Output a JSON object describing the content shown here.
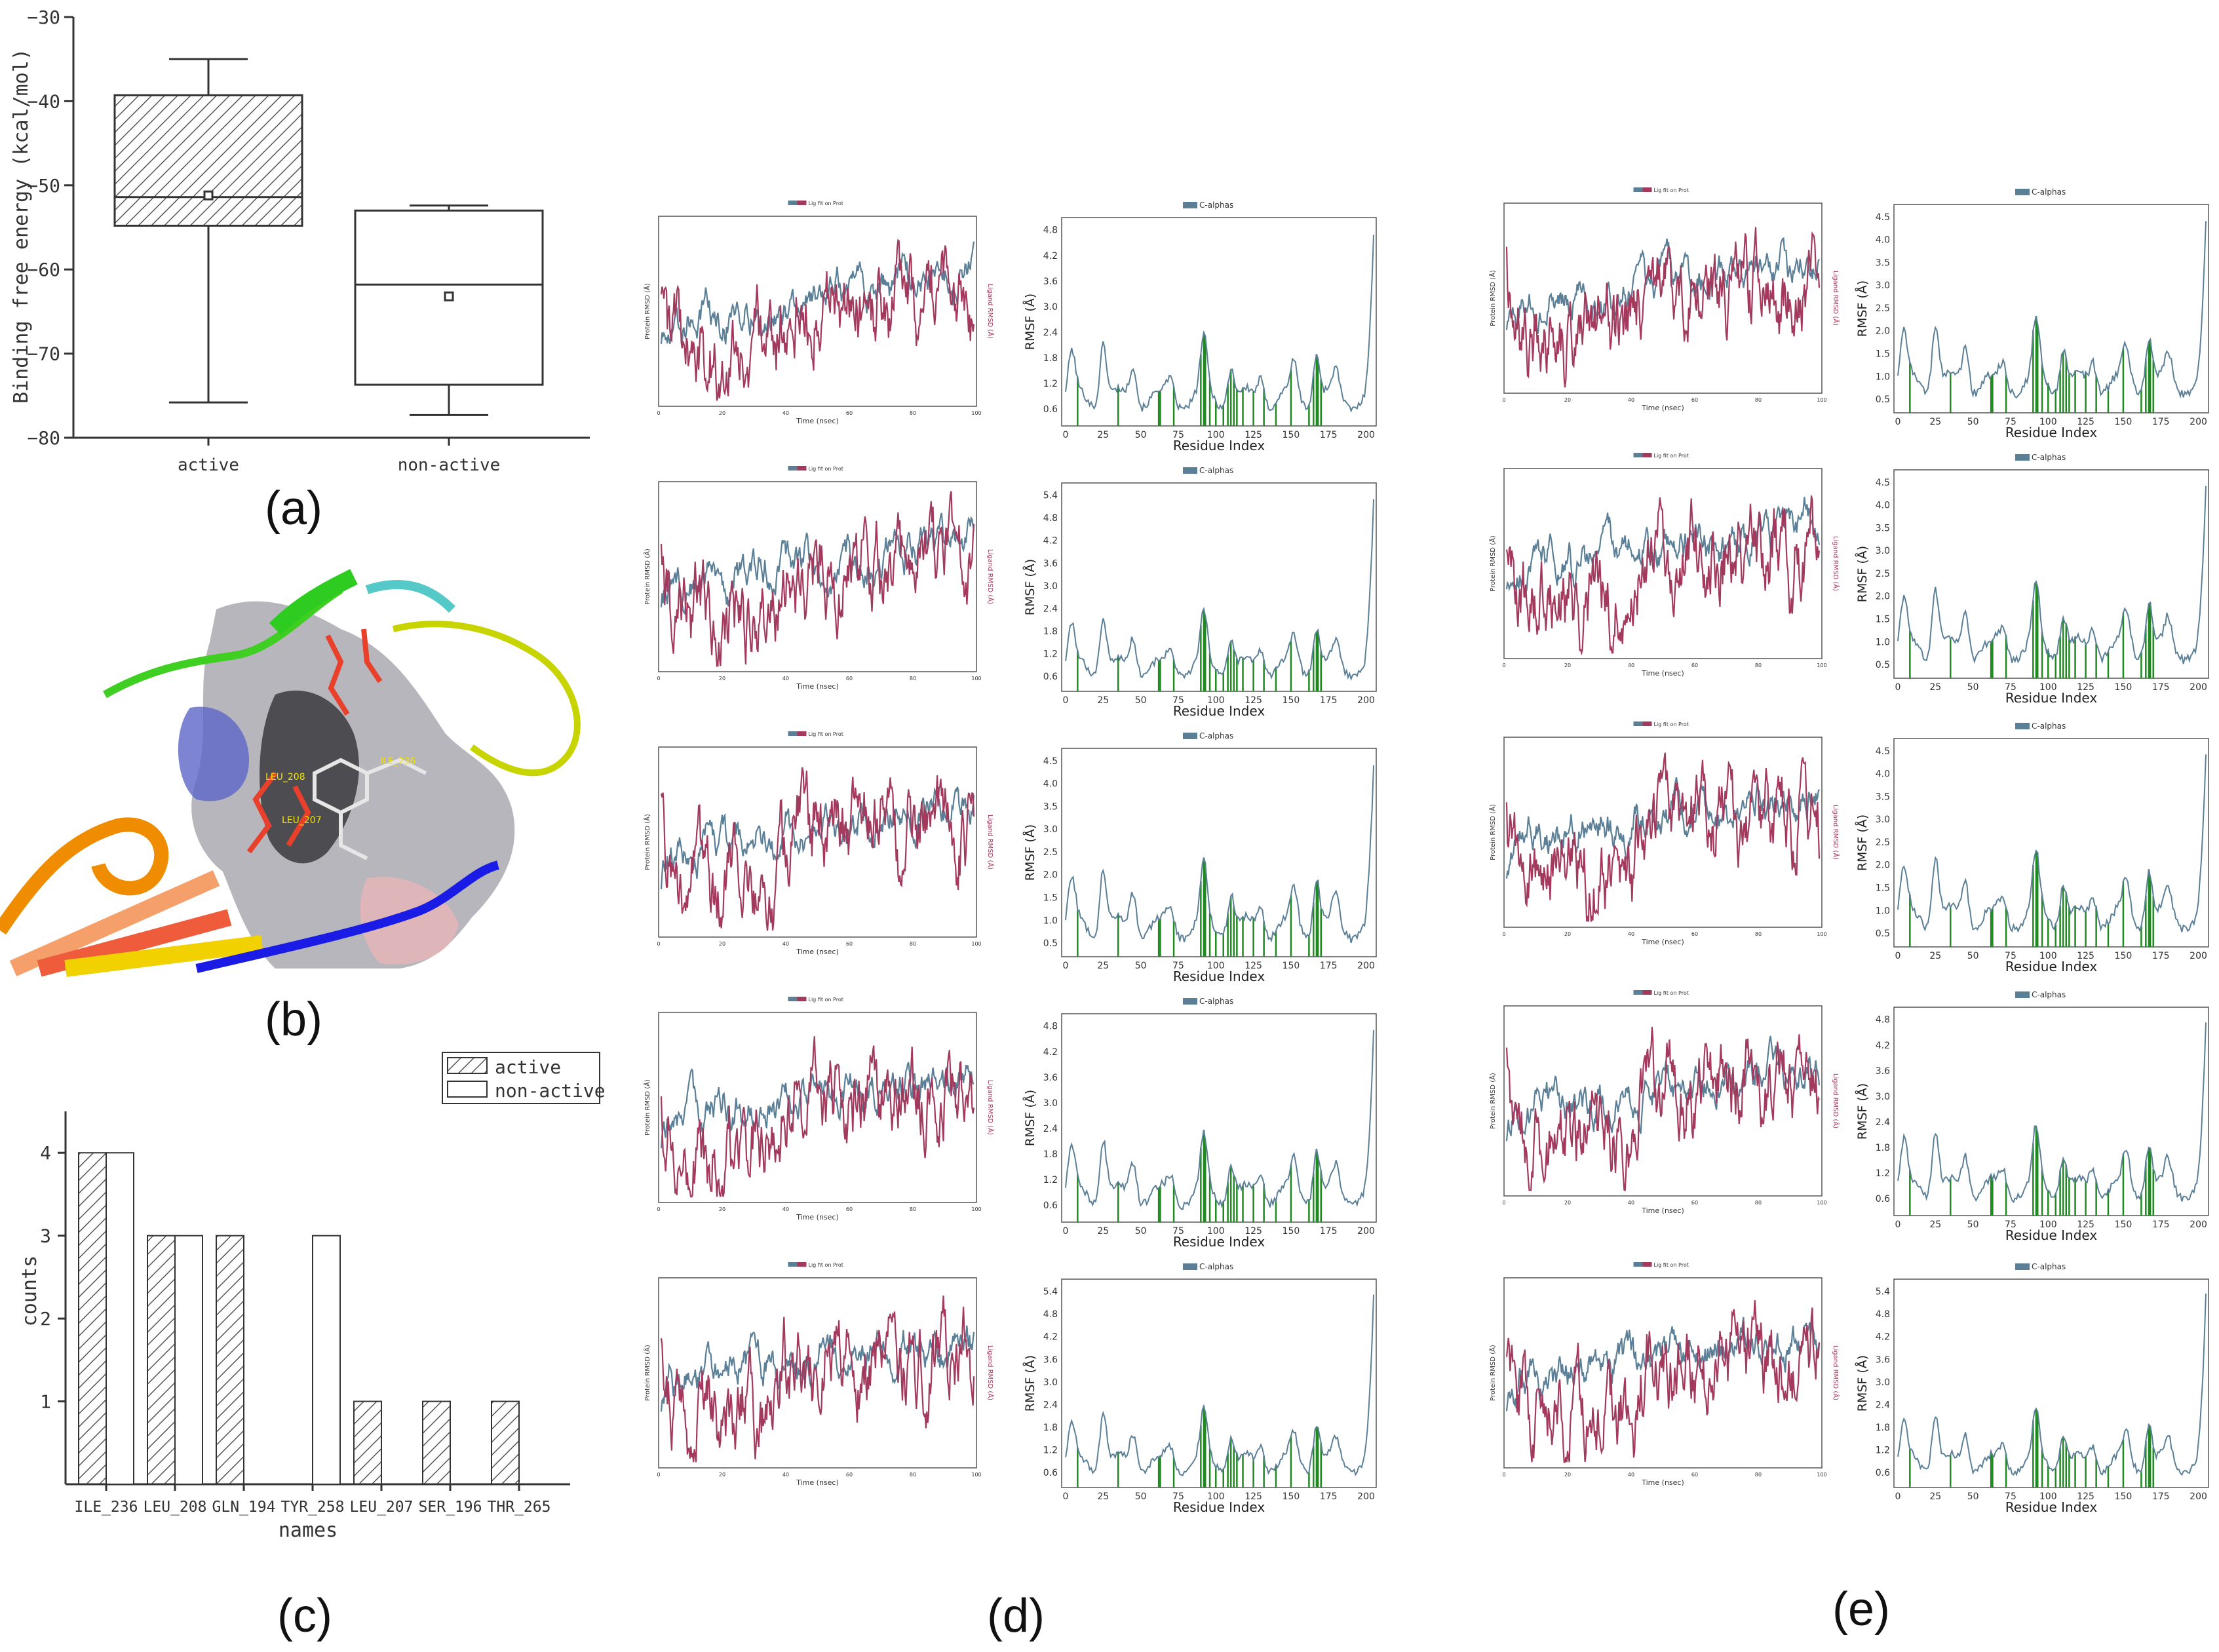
{
  "panel_labels": {
    "a": "(a)",
    "b": "(b)",
    "c": "(c)",
    "d": "(d)",
    "e": "(e)"
  },
  "chart_data": [
    {
      "id": "a",
      "type": "box",
      "title": "",
      "xlabel": "",
      "ylabel": "Binding free energy (kcal/mol)",
      "ylim": [
        -80,
        -30
      ],
      "yticks": [
        -30,
        -40,
        -50,
        -60,
        -70,
        -80
      ],
      "categories": [
        "active",
        "non-active"
      ],
      "boxes": [
        {
          "name": "active",
          "whisker_low": -75.8,
          "q1": -54.8,
          "median": -51.4,
          "mean": -51.2,
          "q3": -39.3,
          "whisker_high": -35.0,
          "hatched": true
        },
        {
          "name": "non-active",
          "whisker_low": -77.3,
          "q1": -73.7,
          "median": -61.8,
          "mean": -63.2,
          "q3": -53.0,
          "whisker_high": -52.4,
          "hatched": false
        }
      ]
    },
    {
      "id": "c",
      "type": "bar",
      "xlabel": "names",
      "ylabel": "counts",
      "ylim": [
        0,
        4.5
      ],
      "yticks": [
        1,
        2,
        3,
        4
      ],
      "categories": [
        "ILE_236",
        "LEU_208",
        "GLN_194",
        "TYR_258",
        "LEU_207",
        "SER_196",
        "THR_265"
      ],
      "legend": {
        "placement": "top-right",
        "entries": [
          "active",
          "non-active"
        ]
      },
      "series": [
        {
          "name": "active",
          "values": [
            4,
            3,
            3,
            0,
            1,
            1,
            1
          ]
        },
        {
          "name": "non-active",
          "values": [
            4,
            3,
            0,
            3,
            0,
            0,
            0
          ]
        }
      ]
    },
    {
      "id": "d",
      "type": "line",
      "description_series": "Five rows of MD trajectory plots: protein/ligand RMSD vs time and C-alpha RMSF vs residue index",
      "rmsd": {
        "legend": "Lig fit on Prot",
        "xlabel": "Time (nsec)",
        "ylabel_left": "Protein RMSD (Å)",
        "ylabel_right": "Ligand RMSD (Å)",
        "xticks": [
          0,
          20,
          40,
          60,
          80,
          100
        ]
      },
      "rmsf": {
        "legend": "C-alphas",
        "xlabel": "Residue Index",
        "ylabel": "RMSF (Å)",
        "xticks": [
          0,
          25,
          50,
          75,
          100,
          125,
          150,
          175,
          200
        ],
        "yticks_rows": [
          [
            "0.6",
            "1.2",
            "1.8",
            "2.4",
            "3.0",
            "3.6",
            "4.2",
            "4.8"
          ],
          [
            "0.6",
            "1.2",
            "1.8",
            "2.4",
            "3.0",
            "3.6",
            "4.2",
            "4.8",
            "5.4"
          ],
          [
            "0.5",
            "1.0",
            "1.5",
            "2.0",
            "2.5",
            "3.0",
            "3.5",
            "4.0",
            "4.5"
          ],
          [
            "0.6",
            "1.2",
            "1.8",
            "2.4",
            "3.0",
            "3.6",
            "4.2",
            "4.8"
          ],
          [
            "0.6",
            "1.2",
            "1.8",
            "2.4",
            "3.0",
            "3.6",
            "4.2",
            "4.8",
            "5.4"
          ]
        ]
      }
    },
    {
      "id": "e",
      "type": "line",
      "description_series": "Five rows of MD trajectory plots: protein/ligand RMSD vs time and C-alpha RMSF vs residue index",
      "rmsd": {
        "legend": "Lig fit on Prot",
        "xlabel": "Time (nsec)",
        "ylabel_left": "Protein RMSD (Å)",
        "ylabel_right": "Ligand RMSD (Å)",
        "xticks": [
          0,
          20,
          40,
          60,
          80,
          100
        ]
      },
      "rmsf": {
        "legend": "C-alphas",
        "xlabel": "Residue Index",
        "ylabel": "RMSF (Å)",
        "xticks": [
          0,
          25,
          50,
          75,
          100,
          125,
          150,
          175,
          200
        ],
        "yticks_rows": [
          [
            "0.5",
            "1.0",
            "1.5",
            "2.0",
            "2.5",
            "3.0",
            "3.5",
            "4.0",
            "4.5"
          ],
          [
            "0.5",
            "1.0",
            "1.5",
            "2.0",
            "2.5",
            "3.0",
            "3.5",
            "4.0",
            "4.5"
          ],
          [
            "0.5",
            "1.0",
            "1.5",
            "2.0",
            "2.5",
            "3.0",
            "3.5",
            "4.0",
            "4.5"
          ],
          [
            "0.6",
            "1.2",
            "1.8",
            "2.4",
            "3.0",
            "3.6",
            "4.2",
            "4.8"
          ],
          [
            "0.6",
            "1.2",
            "1.8",
            "2.4",
            "3.0",
            "3.6",
            "4.2",
            "4.8",
            "5.4"
          ]
        ]
      }
    }
  ],
  "structure_labels": [
    "LEU_208",
    "LEU_207",
    "ILE_236"
  ],
  "colors": {
    "protein": "#5a7f97",
    "ligand": "#a33a5e",
    "contact": "#1f8a1f",
    "axis": "#333333"
  }
}
